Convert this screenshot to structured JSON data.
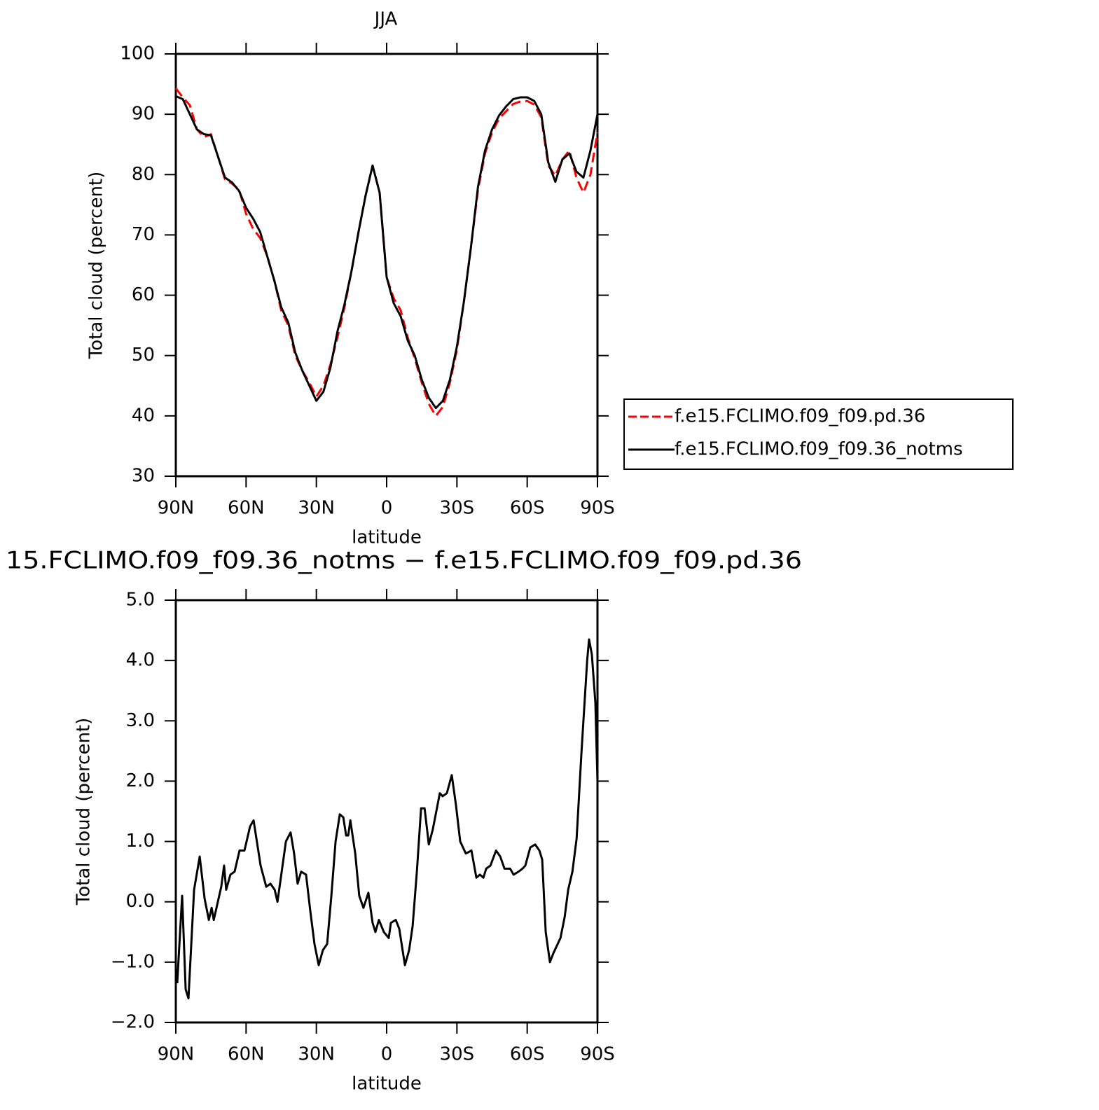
{
  "chart_data": [
    {
      "type": "line",
      "title": "JJA",
      "x_label": "latitude",
      "y_label": "Total cloud (percent)",
      "x": [
        90,
        87,
        84,
        81,
        78,
        75,
        72,
        69,
        66,
        63,
        60,
        57,
        54,
        51,
        48,
        45,
        42,
        39,
        36,
        33,
        30,
        27,
        24,
        21,
        18,
        15,
        12,
        9,
        6,
        3,
        0,
        -3,
        -6,
        -9,
        -12,
        -15,
        -18,
        -21,
        -24,
        -27,
        -30,
        -33,
        -36,
        -39,
        -42,
        -45,
        -48,
        -51,
        -54,
        -57,
        -60,
        -63,
        -66,
        -69,
        -72,
        -75,
        -78,
        -81,
        -84,
        -87,
        -90
      ],
      "series": [
        {
          "name": "f.e15.FCLIMO.f09_f09.pd.36",
          "color": "#ff0000",
          "dash": "dashed",
          "values": [
            94.3,
            92.8,
            91.5,
            87.5,
            86.2,
            86.7,
            83,
            79.2,
            78.5,
            77.5,
            73.5,
            71,
            69.5,
            66.5,
            62.5,
            57.5,
            55,
            50,
            47.5,
            45.5,
            43.2,
            45,
            48.5,
            53,
            58,
            64,
            70.5,
            76.5,
            81.5,
            77,
            63,
            59.5,
            57.5,
            53,
            49.5,
            45.5,
            42,
            40,
            41.5,
            45.5,
            51,
            59,
            68,
            77.5,
            83.5,
            87,
            89.3,
            90.5,
            91.7,
            92.1,
            92.2,
            91.6,
            89.5,
            81.5,
            79.8,
            82.5,
            84,
            79.5,
            77,
            80,
            87
          ]
        },
        {
          "name": "f.e15.FCLIMO.f09_f09.36_notms",
          "color": "#000000",
          "dash": "solid",
          "values": [
            93,
            92.5,
            90,
            87.5,
            86.7,
            86.5,
            83,
            79.5,
            78.7,
            77.3,
            74.5,
            72.7,
            70.5,
            66.5,
            62.5,
            58,
            55.5,
            50.5,
            47.5,
            45,
            42.5,
            44,
            48,
            54,
            58.5,
            64,
            70.5,
            76.5,
            81.5,
            77,
            63,
            58.7,
            56.5,
            52.5,
            50,
            46,
            43,
            41.3,
            42.5,
            46,
            51.5,
            59,
            68,
            78,
            84,
            87.5,
            89.8,
            91.3,
            92.5,
            92.8,
            92.8,
            92.2,
            90,
            82,
            78.8,
            82.5,
            83.5,
            80.5,
            79.5,
            84,
            90
          ]
        }
      ],
      "xlim": [
        90,
        -90
      ],
      "xticks": [
        {
          "value": 90,
          "label": "90N"
        },
        {
          "value": 60,
          "label": "60N"
        },
        {
          "value": 30,
          "label": "30N"
        },
        0,
        {
          "value": -30,
          "label": "30S"
        },
        {
          "value": -60,
          "label": "60S"
        },
        {
          "value": -90,
          "label": "90S"
        }
      ],
      "ylim": [
        30,
        100
      ],
      "yticks": [
        30,
        40,
        50,
        60,
        70,
        80,
        90,
        100
      ],
      "legend": "right"
    },
    {
      "type": "line",
      "title": "15.FCLIMO.f09_f09.36_notms − f.e15.FCLIMO.f09_f09.pd.36",
      "x_label": "latitude",
      "y_label": "Total cloud (percent)",
      "x": [
        89.4,
        87.3,
        85.8,
        84.6,
        82.2,
        79.8,
        77.7,
        75.9,
        74.7,
        73.8,
        70.6,
        69.4,
        68.5,
        66.7,
        64.9,
        62.8,
        60.7,
        58.3,
        56.8,
        55.6,
        53.8,
        51.4,
        49.6,
        47.8,
        46.6,
        44.8,
        43.0,
        41.0,
        39.5,
        38.0,
        36.5,
        34.4,
        32.6,
        30.8,
        29.0,
        27.2,
        25.4,
        23.6,
        21.8,
        20.0,
        18.5,
        17.3,
        16.4,
        15.5,
        13.4,
        11.7,
        9.9,
        7.8,
        6.0,
        4.8,
        3.3,
        1.2,
        -0.9,
        -1.8,
        -3.9,
        -5.4,
        -7.8,
        -9.6,
        -11.1,
        -12.9,
        -14.7,
        -16.2,
        -18.0,
        -19.7,
        -22.7,
        -23.9,
        -25.7,
        -27.8,
        -29.6,
        -31.4,
        -33.8,
        -36.2,
        -38.3,
        -39.8,
        -41.3,
        -42.5,
        -44.3,
        -46.7,
        -48.5,
        -50.3,
        -52.7,
        -54.2,
        -56.3,
        -58.0,
        -59.2,
        -61.3,
        -63.4,
        -65.2,
        -66.4,
        -67.9,
        -69.7,
        -71.2,
        -74.2,
        -76.0,
        -77.5,
        -79.3,
        -81.1,
        -83.2,
        -85.6,
        -86.4,
        -87.6,
        -89.1,
        -90.0
      ],
      "series": [
        {
          "color": "#000000",
          "dash": "solid",
          "values": [
            -1.35,
            0.1,
            -1.45,
            -1.6,
            0.2,
            0.75,
            0.05,
            -0.3,
            -0.1,
            -0.3,
            0.25,
            0.6,
            0.2,
            0.45,
            0.5,
            0.85,
            0.85,
            1.25,
            1.35,
            1.05,
            0.6,
            0.25,
            0.3,
            0.2,
            0,
            0.5,
            1.0,
            1.15,
            0.8,
            0.3,
            0.5,
            0.45,
            -0.15,
            -0.7,
            -1.05,
            -0.8,
            -0.7,
            0.1,
            1.0,
            1.45,
            1.4,
            1.1,
            1.1,
            1.35,
            0.8,
            0.1,
            -0.1,
            0.15,
            -0.35,
            -0.5,
            -0.3,
            -0.5,
            -0.6,
            -0.35,
            -0.3,
            -0.45,
            -1.05,
            -0.8,
            -0.4,
            0.5,
            1.55,
            1.55,
            0.95,
            1.2,
            1.8,
            1.75,
            1.8,
            2.1,
            1.6,
            1.0,
            0.8,
            0.85,
            0.4,
            0.45,
            0.4,
            0.55,
            0.6,
            0.85,
            0.75,
            0.55,
            0.55,
            0.45,
            0.5,
            0.55,
            0.6,
            0.9,
            0.95,
            0.85,
            0.7,
            -0.5,
            -1.0,
            -0.85,
            -0.6,
            -0.25,
            0.2,
            0.5,
            1.05,
            2.5,
            4.0,
            4.35,
            4.1,
            3.3,
            2.0
          ]
        }
      ],
      "xlim": [
        90,
        -90
      ],
      "xticks": [
        {
          "value": 90,
          "label": "90N"
        },
        {
          "value": 60,
          "label": "60N"
        },
        {
          "value": 30,
          "label": "30N"
        },
        0,
        {
          "value": -30,
          "label": "30S"
        },
        {
          "value": -60,
          "label": "60S"
        },
        {
          "value": -90,
          "label": "90S"
        }
      ],
      "ylim": [
        -2,
        5
      ],
      "yticks": [
        {
          "value": -2,
          "label": "−2.0"
        },
        {
          "value": -1,
          "label": "−1.0"
        },
        {
          "value": 0,
          "label": "0.0"
        },
        {
          "value": 1,
          "label": "1.0"
        },
        {
          "value": 2,
          "label": "2.0"
        },
        {
          "value": 3,
          "label": "3.0"
        },
        {
          "value": 4,
          "label": "4.0"
        },
        {
          "value": 5,
          "label": "5.0"
        }
      ]
    }
  ]
}
